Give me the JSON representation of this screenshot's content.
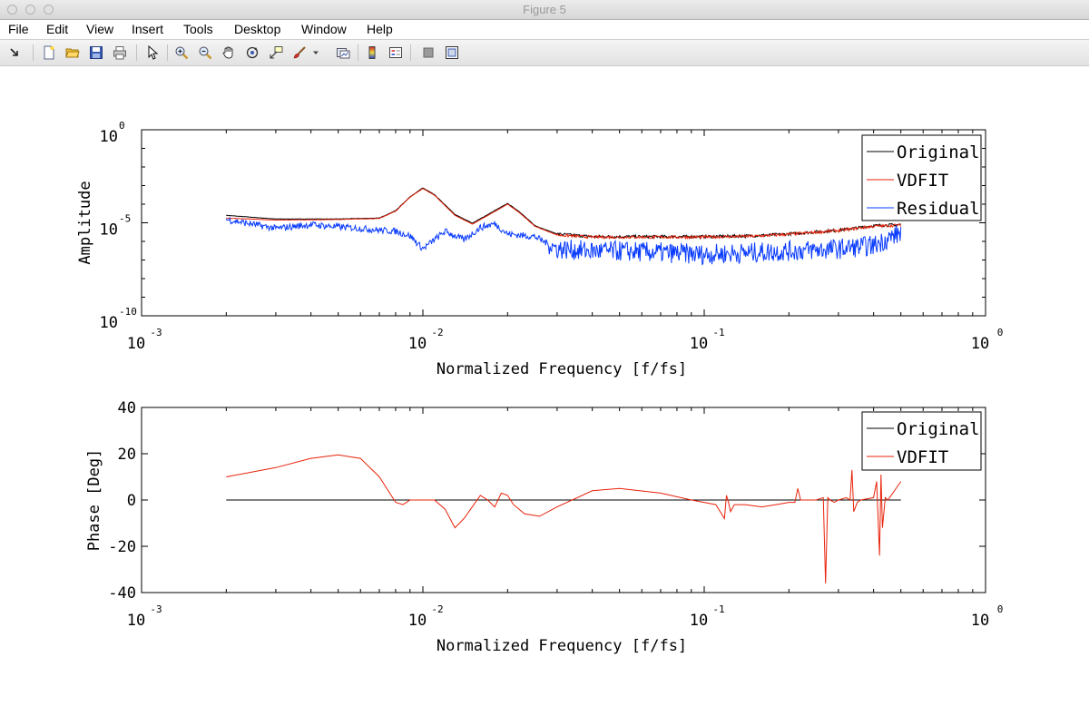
{
  "window": {
    "title": "Figure 5"
  },
  "menu": [
    "File",
    "Edit",
    "View",
    "Insert",
    "Tools",
    "Desktop",
    "Window",
    "Help"
  ],
  "toolbar": [
    {
      "name": "dock-arrow-icon"
    },
    {
      "name": "new-figure-icon"
    },
    {
      "name": "open-file-icon"
    },
    {
      "name": "save-icon"
    },
    {
      "name": "print-icon"
    },
    {
      "name": "edit-plot-arrow-icon"
    },
    {
      "name": "zoom-in-icon"
    },
    {
      "name": "zoom-out-icon"
    },
    {
      "name": "pan-hand-icon"
    },
    {
      "name": "rotate-3d-icon"
    },
    {
      "name": "data-cursor-icon"
    },
    {
      "name": "brush-icon"
    },
    {
      "name": "brush-dropdown-icon"
    },
    {
      "name": "link-plot-icon"
    },
    {
      "name": "colorbar-icon"
    },
    {
      "name": "legend-icon"
    },
    {
      "name": "hide-plot-tools-icon"
    },
    {
      "name": "show-plot-tools-icon"
    }
  ],
  "colors": {
    "original": "#000000",
    "vdfit": "#e8220a",
    "residual": "#0a3cff"
  },
  "chart_data": [
    {
      "type": "line",
      "xscale": "log",
      "yscale": "log",
      "xlabel": "Normalized Frequency [f/fs]",
      "ylabel": "Amplitude",
      "xlim": [
        0.001,
        1
      ],
      "ylim": [
        1e-10,
        1
      ],
      "xticks": [
        "10",
        "10",
        "10",
        "10"
      ],
      "xtick_exponents": [
        "-3",
        "-2",
        "-1",
        "0"
      ],
      "yticks": [
        "10",
        "10",
        "10"
      ],
      "ytick_exponents": [
        "-10",
        "-5",
        "0"
      ],
      "legend": {
        "entries": [
          "Original",
          "VDFIT",
          "Residual"
        ],
        "placement": "top-right"
      },
      "series": [
        {
          "name": "Original",
          "x": [
            0.002,
            0.003,
            0.005,
            0.007,
            0.008,
            0.009,
            0.01,
            0.011,
            0.013,
            0.015,
            0.018,
            0.02,
            0.022,
            0.025,
            0.03,
            0.04,
            0.05,
            0.07,
            0.1,
            0.15,
            0.2,
            0.3,
            0.4,
            0.5
          ],
          "y": [
            2.5e-05,
            1.6e-05,
            1.6e-05,
            1.8e-05,
            4.5e-05,
            0.00025,
            0.00075,
            0.00032,
            2.8e-05,
            9.5e-06,
            4.5e-05,
            0.00011,
            4e-05,
            7e-06,
            2.5e-06,
            1.8e-06,
            1.8e-06,
            1.8e-06,
            1.8e-06,
            2e-06,
            2.5e-06,
            4e-06,
            7e-06,
            8e-06
          ]
        },
        {
          "name": "VDFIT",
          "x": [
            0.002,
            0.003,
            0.005,
            0.007,
            0.008,
            0.009,
            0.01,
            0.011,
            0.013,
            0.015,
            0.018,
            0.02,
            0.022,
            0.025,
            0.03,
            0.04,
            0.05,
            0.07,
            0.1,
            0.15,
            0.2,
            0.3,
            0.4,
            0.5
          ],
          "y": [
            1.8e-05,
            1.4e-05,
            1.5e-05,
            1.7e-05,
            4.2e-05,
            0.00024,
            0.0007,
            0.0003,
            2.5e-05,
            8.5e-06,
            4e-05,
            0.0001,
            3.6e-05,
            6.5e-06,
            2.2e-06,
            1.7e-06,
            1.7e-06,
            1.7e-06,
            1.7e-06,
            1.9e-06,
            2.4e-06,
            3.8e-06,
            6.5e-06,
            7.5e-06
          ]
        },
        {
          "name": "Residual",
          "x": [
            0.002,
            0.003,
            0.004,
            0.005,
            0.006,
            0.007,
            0.008,
            0.009,
            0.01,
            0.012,
            0.014,
            0.016,
            0.018,
            0.02,
            0.025,
            0.03,
            0.04,
            0.05,
            0.07,
            0.1,
            0.15,
            0.2,
            0.3,
            0.4,
            0.5
          ],
          "y": [
            1.5e-05,
            5e-06,
            8e-06,
            6e-06,
            5e-06,
            4e-06,
            3.5e-06,
            2e-06,
            4e-07,
            3.5e-06,
            1.2e-06,
            5.5e-06,
            9e-06,
            2.5e-06,
            1.8e-06,
            4e-07,
            3e-07,
            3e-07,
            2.5e-07,
            2e-07,
            2.5e-07,
            3e-07,
            4e-07,
            6e-07,
            3e-06
          ]
        }
      ]
    },
    {
      "type": "line",
      "xscale": "log",
      "xlabel": "Normalized Frequency [f/fs]",
      "ylabel": "Phase [Deg]",
      "xlim": [
        0.001,
        1
      ],
      "ylim": [
        -40,
        40
      ],
      "xticks": [
        "10",
        "10",
        "10",
        "10"
      ],
      "xtick_exponents": [
        "-3",
        "-2",
        "-1",
        "0"
      ],
      "yticks": [
        "-40",
        "-20",
        "0",
        "20",
        "40"
      ],
      "legend": {
        "entries": [
          "Original",
          "VDFIT"
        ],
        "placement": "top-right"
      },
      "series": [
        {
          "name": "Original",
          "x": [
            0.002,
            0.5
          ],
          "y": [
            0,
            0
          ]
        },
        {
          "name": "VDFIT",
          "x": [
            0.002,
            0.003,
            0.004,
            0.005,
            0.006,
            0.007,
            0.008,
            0.0085,
            0.009,
            0.0095,
            0.01,
            0.011,
            0.012,
            0.013,
            0.014,
            0.016,
            0.017,
            0.018,
            0.019,
            0.02,
            0.021,
            0.023,
            0.026,
            0.03,
            0.04,
            0.05,
            0.07,
            0.09,
            0.11,
            0.118,
            0.12,
            0.122,
            0.124,
            0.128,
            0.14,
            0.16,
            0.18,
            0.2,
            0.21,
            0.215,
            0.22,
            0.25,
            0.265,
            0.27,
            0.275,
            0.28,
            0.29,
            0.3,
            0.32,
            0.33,
            0.335,
            0.34,
            0.35,
            0.36,
            0.4,
            0.41,
            0.42,
            0.425,
            0.43,
            0.44,
            0.45,
            0.5
          ],
          "y": [
            10,
            14,
            18,
            19.5,
            18,
            10,
            -1,
            -2,
            0,
            0,
            0,
            0,
            -4,
            -12,
            -8,
            2,
            0,
            -3,
            3,
            2,
            -2,
            -6,
            -7,
            -3,
            4,
            5,
            3,
            0,
            -2,
            -8,
            2,
            -1,
            -5,
            -2,
            -2,
            -3,
            -2,
            -1,
            -1,
            5,
            0,
            0,
            1,
            -36,
            1,
            0,
            -1,
            0,
            1,
            0,
            13,
            -5,
            -1,
            0,
            1,
            8,
            -24,
            11,
            -12,
            1,
            0,
            8
          ]
        }
      ]
    }
  ]
}
